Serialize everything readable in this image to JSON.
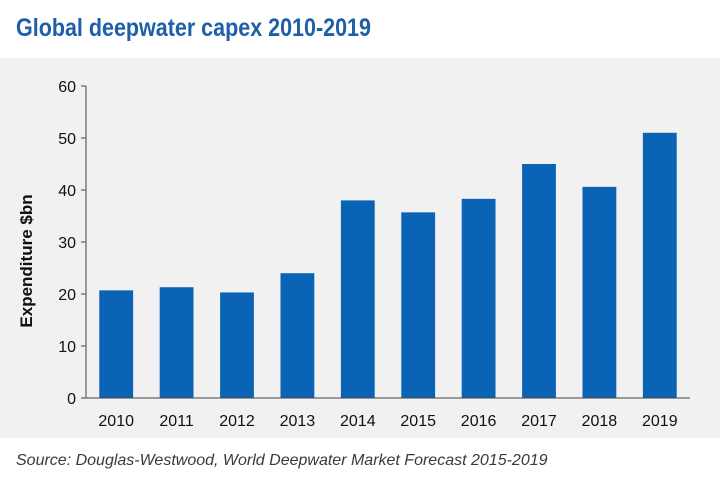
{
  "chart_data": {
    "type": "bar",
    "title": "Global deepwater capex 2010-2019",
    "ylabel": "Expenditure $bn",
    "xlabel": "",
    "categories": [
      "2010",
      "2011",
      "2012",
      "2013",
      "2014",
      "2015",
      "2016",
      "2017",
      "2018",
      "2019"
    ],
    "values": [
      20.7,
      21.3,
      20.3,
      24.0,
      38.0,
      35.7,
      38.3,
      45.0,
      40.6,
      51.0
    ],
    "ylim": [
      0,
      60
    ],
    "yticks": [
      0,
      10,
      20,
      30,
      40,
      50,
      60
    ],
    "grid": false,
    "legend": "none",
    "bar_color": "#0b63b5",
    "source": "Source: Douglas-Westwood, World Deepwater Market Forecast 2015-2019"
  },
  "colors": {
    "title": "#1f5fa8",
    "panel_bg": "#f1f1f1",
    "bar": "#0b63b5"
  }
}
